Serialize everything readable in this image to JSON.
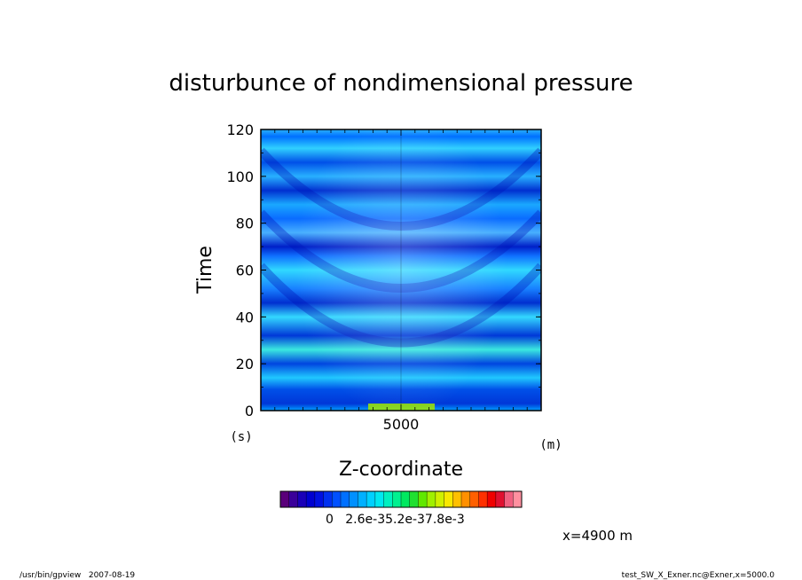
{
  "chart_data": {
    "type": "heatmap",
    "title": "disturbunce of nondimensional pressure",
    "xlabel": "Z-coordinate",
    "ylabel": "Time",
    "x_unit": "(m)",
    "y_unit": "(s)",
    "x_ticks": [
      "5000"
    ],
    "y_ticks": [
      "0",
      "20",
      "40",
      "60",
      "80",
      "100",
      "120"
    ],
    "ylim": [
      0,
      120
    ],
    "colorbar_labels": [
      "0",
      "2.6e-3",
      "5.2e-3",
      "7.8e-3"
    ],
    "colorbar_label_text": "0   2.6e-35.2e-37.8e-3",
    "bands": [
      {
        "t": 0,
        "color": "#00a0ff"
      },
      {
        "t": 3,
        "color": "#0037d8"
      },
      {
        "t": 9,
        "color": "#0050e8"
      },
      {
        "t": 14,
        "color": "#20c8ff"
      },
      {
        "t": 20,
        "color": "#0045e0"
      },
      {
        "t": 26,
        "color": "#3ae8e0"
      },
      {
        "t": 32,
        "color": "#0038d8"
      },
      {
        "t": 40,
        "color": "#33d8ff"
      },
      {
        "t": 46,
        "color": "#0030d0"
      },
      {
        "t": 52,
        "color": "#1880ff"
      },
      {
        "t": 60,
        "color": "#30d8ff"
      },
      {
        "t": 66,
        "color": "#0f70ff"
      },
      {
        "t": 70,
        "color": "#0020c8"
      },
      {
        "t": 76,
        "color": "#48b0ff"
      },
      {
        "t": 82,
        "color": "#0a6cff"
      },
      {
        "t": 88,
        "color": "#1aa8ff"
      },
      {
        "t": 94,
        "color": "#0030d0"
      },
      {
        "t": 100,
        "color": "#28b0ff"
      },
      {
        "t": 106,
        "color": "#0050e8"
      },
      {
        "t": 112,
        "color": "#30d0ff"
      },
      {
        "t": 117,
        "color": "#0070ff"
      },
      {
        "t": 120,
        "color": "#2ab0ff"
      }
    ],
    "colorbar_colors": [
      "#5a007a",
      "#3a009a",
      "#1a00b8",
      "#0000d0",
      "#0010e0",
      "#0030f0",
      "#0050ff",
      "#0070ff",
      "#0090ff",
      "#00b0ff",
      "#00d0ff",
      "#00e8f0",
      "#00f0c0",
      "#00f090",
      "#00e860",
      "#20e030",
      "#60e800",
      "#a0f000",
      "#d0f000",
      "#f8e800",
      "#ffc000",
      "#ff9000",
      "#ff6000",
      "#ff3000",
      "#f00000",
      "#e01030",
      "#f06080",
      "#ff90a0"
    ]
  },
  "annotation": "x=4900 m",
  "footer": {
    "left": "/usr/bin/gpview   2007-08-19",
    "right": "test_SW_X_Exner.nc@Exner,x=5000.0"
  }
}
